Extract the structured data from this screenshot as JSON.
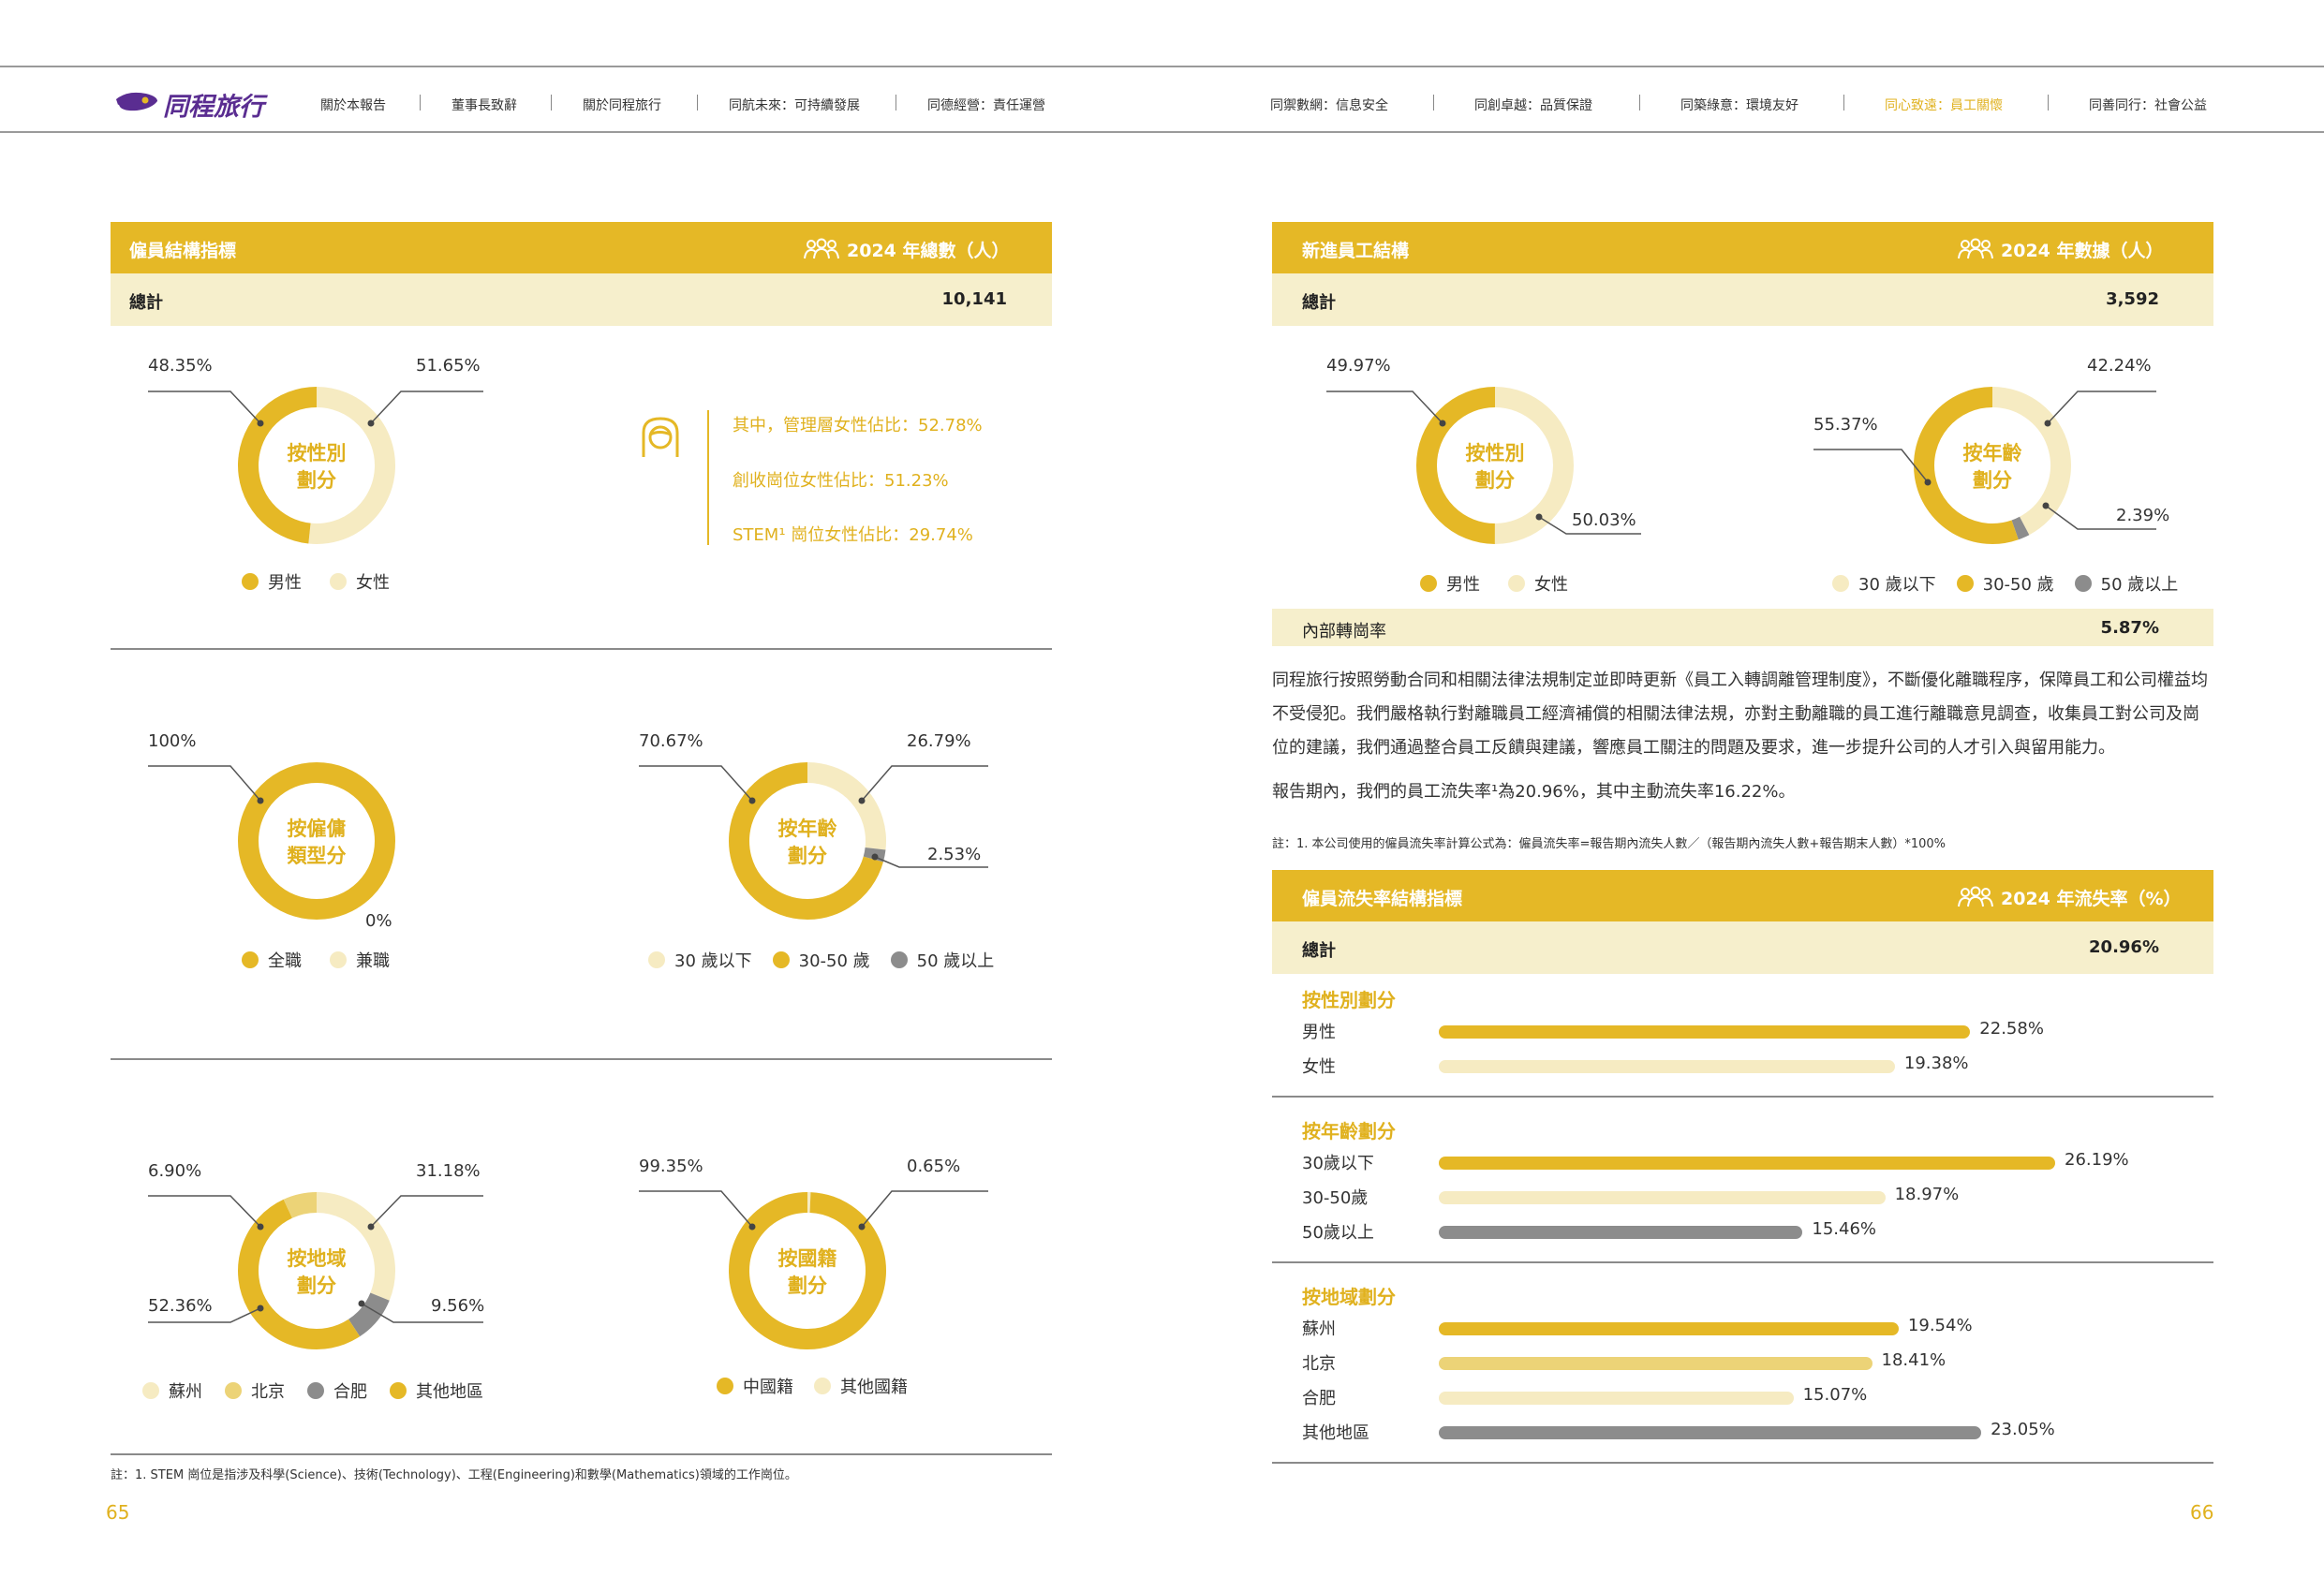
{
  "header": {
    "logo_text": "同程旅行",
    "nav": [
      {
        "label": "關於本報告",
        "active": false
      },
      {
        "label": "董事長致辭",
        "active": false
      },
      {
        "label": "關於同程旅行",
        "active": false
      },
      {
        "label": "同航未來：可持續發展",
        "active": false
      },
      {
        "label": "同德經營：責任運營",
        "active": false
      },
      {
        "label": "同禦數網：信息安全",
        "active": false
      },
      {
        "label": "同創卓越：品質保證",
        "active": false
      },
      {
        "label": "同築綠意：環境友好",
        "active": false
      },
      {
        "label": "同心致遠：員工關懷",
        "active": true
      },
      {
        "label": "同善同行：社會公益",
        "active": false
      }
    ]
  },
  "colors": {
    "gold": "#e5b826",
    "light": "#f6ebc2",
    "grey": "#8c8c8c",
    "pale": "#f6efcc",
    "mid_gold": "#ecd377"
  },
  "left": {
    "header_title": "僱員結構指標",
    "header_right": "2024 年總數（人）",
    "total_label": "總計",
    "total_value": "10,141",
    "gender": {
      "center": [
        "按性別",
        "劃分"
      ],
      "labels": {
        "male": "48.35%",
        "female": "51.65%"
      },
      "legend": [
        "男性",
        "女性"
      ]
    },
    "female_stats": [
      "其中，管理層女性佔比：52.78%",
      "創收崗位女性佔比：51.23%",
      "STEM¹ 崗位女性佔比：29.74%"
    ],
    "employment": {
      "center": [
        "按僱傭",
        "類型分"
      ],
      "labels": {
        "full": "100%",
        "part": "0%"
      },
      "legend": [
        "全職",
        "兼職"
      ]
    },
    "age": {
      "center": [
        "按年齡",
        "劃分"
      ],
      "labels": {
        "mid": "70.67%",
        "young": "26.79%",
        "old": "2.53%"
      },
      "legend": [
        "30 歲以下",
        "30-50 歲",
        "50 歲以上"
      ]
    },
    "region": {
      "center": [
        "按地域",
        "劃分"
      ],
      "labels": {
        "beijing": "6.90%",
        "suzhou": "31.18%",
        "other": "52.36%",
        "hefei": "9.56%"
      },
      "legend": [
        "蘇州",
        "北京",
        "合肥",
        "其他地區"
      ]
    },
    "nationality": {
      "center": [
        "按國籍",
        "劃分"
      ],
      "labels": {
        "cn": "99.35%",
        "other": "0.65%"
      },
      "legend": [
        "中國籍",
        "其他國籍"
      ]
    },
    "footnote": "註：1. STEM 崗位是指涉及科學(Science)、技術(Technology)、工程(Engineering)和數學(Mathematics)領域的工作崗位。",
    "page_number": "65"
  },
  "right": {
    "new_header_title": "新進員工結構",
    "new_header_right": "2024 年數據（人）",
    "new_total_label": "總計",
    "new_total_value": "3,592",
    "new_gender": {
      "center": [
        "按性別",
        "劃分"
      ],
      "labels": {
        "male": "49.97%",
        "female": "50.03%"
      },
      "legend": [
        "男性",
        "女性"
      ]
    },
    "new_age": {
      "center": [
        "按年齡",
        "劃分"
      ],
      "labels": {
        "young": "42.24%",
        "mid": "55.37%",
        "old": "2.39%"
      },
      "legend": [
        "30 歲以下",
        "30-50 歲",
        "50 歲以上"
      ]
    },
    "transfer_label": "內部轉崗率",
    "transfer_value": "5.87%",
    "paragraph1": "同程旅行按照勞動合同和相關法律法規制定並即時更新《員工入轉調離管理制度》，不斷優化離職程序，保障員工和公司權益均不受侵犯。我們嚴格執行對離職員工經濟補償的相關法律法規，亦對主動離職的員工進行離職意見調查，收集員工對公司及崗位的建議，我們通過整合員工反饋與建議，響應員工關注的問題及要求，進一步提升公司的人才引入與留用能力。",
    "paragraph2": "報告期內，我們的員工流失率¹為20.96%，其中主動流失率16.22%。",
    "note": "註：1. 本公司使用的僱員流失率計算公式為：僱員流失率=報告期內流失人數／（報告期內流失人數+報告期末人數）*100%",
    "turnover_header_title": "僱員流失率結構指標",
    "turnover_header_right": "2024 年流失率（%）",
    "turnover_total_label": "總計",
    "turnover_total_value": "20.96%",
    "turnover_sections": [
      {
        "title": "按性別劃分",
        "rows": [
          {
            "label": "男性",
            "value": 22.58,
            "text": "22.58%",
            "color": "#e5b826"
          },
          {
            "label": "女性",
            "value": 19.38,
            "text": "19.38%",
            "color": "#f6ebc2"
          }
        ]
      },
      {
        "title": "按年齡劃分",
        "rows": [
          {
            "label": "30歲以下",
            "value": 26.19,
            "text": "26.19%",
            "color": "#e5b826"
          },
          {
            "label": "30-50歲",
            "value": 18.97,
            "text": "18.97%",
            "color": "#f6ebc2"
          },
          {
            "label": "50歲以上",
            "value": 15.46,
            "text": "15.46%",
            "color": "#8c8c8c"
          }
        ]
      },
      {
        "title": "按地域劃分",
        "rows": [
          {
            "label": "蘇州",
            "value": 19.54,
            "text": "19.54%",
            "color": "#e5b826"
          },
          {
            "label": "北京",
            "value": 18.41,
            "text": "18.41%",
            "color": "#ecd377"
          },
          {
            "label": "合肥",
            "value": 15.07,
            "text": "15.07%",
            "color": "#f6ebc2"
          },
          {
            "label": "其他地區",
            "value": 23.05,
            "text": "23.05%",
            "color": "#8c8c8c"
          }
        ]
      }
    ],
    "page_number": "66"
  },
  "chart_data": [
    {
      "type": "pie",
      "title": "按性別劃分",
      "categories": [
        "男性",
        "女性"
      ],
      "values": [
        48.35,
        51.65
      ]
    },
    {
      "type": "pie",
      "title": "按僱傭類型分",
      "categories": [
        "全職",
        "兼職"
      ],
      "values": [
        100,
        0
      ]
    },
    {
      "type": "pie",
      "title": "按年齡劃分",
      "categories": [
        "30 歲以下",
        "30-50 歲",
        "50 歲以上"
      ],
      "values": [
        26.79,
        70.67,
        2.53
      ]
    },
    {
      "type": "pie",
      "title": "按地域劃分",
      "categories": [
        "蘇州",
        "北京",
        "合肥",
        "其他地區"
      ],
      "values": [
        31.18,
        6.9,
        9.56,
        52.36
      ]
    },
    {
      "type": "pie",
      "title": "按國籍劃分",
      "categories": [
        "中國籍",
        "其他國籍"
      ],
      "values": [
        99.35,
        0.65
      ]
    },
    {
      "type": "pie",
      "title": "按性別劃分",
      "categories": [
        "男性",
        "女性"
      ],
      "values": [
        49.97,
        50.03
      ]
    },
    {
      "type": "pie",
      "title": "按年齡劃分",
      "categories": [
        "30 歲以下",
        "30-50 歲",
        "50 歲以上"
      ],
      "values": [
        42.24,
        55.37,
        2.39
      ]
    },
    {
      "type": "bar",
      "title": "僱員流失率結構指標",
      "categories": [
        "男性",
        "女性",
        "30歲以下",
        "30-50歲",
        "50歲以上",
        "蘇州",
        "北京",
        "合肥",
        "其他地區"
      ],
      "values": [
        22.58,
        19.38,
        26.19,
        18.97,
        15.46,
        19.54,
        18.41,
        15.07,
        23.05
      ]
    }
  ]
}
